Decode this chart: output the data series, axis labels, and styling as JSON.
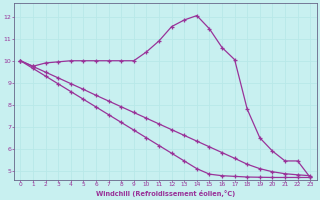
{
  "xlabel": "Windchill (Refroidissement éolien,°C)",
  "bg_color": "#c8f0f0",
  "line_color": "#993399",
  "grid_color": "#b8e8e8",
  "spine_color": "#666688",
  "x_ticks": [
    0,
    1,
    2,
    3,
    4,
    5,
    6,
    7,
    8,
    9,
    10,
    11,
    12,
    13,
    14,
    15,
    16,
    17,
    18,
    19,
    20,
    21,
    22,
    23
  ],
  "y_ticks": [
    5,
    6,
    7,
    8,
    9,
    10,
    11,
    12
  ],
  "xlim": [
    -0.5,
    23.5
  ],
  "ylim": [
    4.6,
    12.6
  ],
  "curve1_x": [
    0,
    1,
    2,
    3,
    4,
    5,
    6,
    7,
    8,
    9,
    10,
    11,
    12,
    13,
    14,
    15,
    16,
    17,
    18,
    19,
    20,
    21,
    22,
    23
  ],
  "curve1_y": [
    10.0,
    9.75,
    9.9,
    9.95,
    10.0,
    10.0,
    10.0,
    10.0,
    10.0,
    10.0,
    10.4,
    10.9,
    11.55,
    11.85,
    12.05,
    11.45,
    10.6,
    10.05,
    7.8,
    6.5,
    5.9,
    5.45,
    5.45,
    4.7
  ],
  "curve2_x": [
    0,
    1,
    2,
    3,
    4,
    5,
    6,
    7,
    8,
    9,
    10,
    11,
    12,
    13,
    14,
    15,
    16,
    17,
    18,
    19,
    20,
    21,
    22,
    23
  ],
  "curve2_y": [
    10.0,
    9.74,
    9.48,
    9.22,
    8.96,
    8.7,
    8.43,
    8.17,
    7.91,
    7.65,
    7.39,
    7.13,
    6.87,
    6.61,
    6.35,
    6.09,
    5.83,
    5.57,
    5.3,
    5.1,
    4.96,
    4.87,
    4.82,
    4.78
  ],
  "curve3_x": [
    0,
    1,
    2,
    3,
    4,
    5,
    6,
    7,
    8,
    9,
    10,
    11,
    12,
    13,
    14,
    15,
    16,
    17,
    18,
    19,
    20,
    21,
    22,
    23
  ],
  "curve3_y": [
    10.0,
    9.65,
    9.3,
    8.95,
    8.6,
    8.25,
    7.9,
    7.55,
    7.2,
    6.85,
    6.5,
    6.15,
    5.8,
    5.45,
    5.1,
    4.85,
    4.78,
    4.75,
    4.72,
    4.71,
    4.7,
    4.7,
    4.7,
    4.7
  ]
}
